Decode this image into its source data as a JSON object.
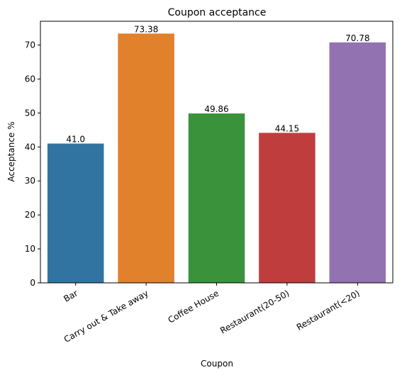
{
  "chart_data": {
    "type": "bar",
    "title": "Coupon acceptance",
    "xlabel": "Coupon",
    "ylabel": "Acceptance %",
    "categories": [
      "Bar",
      "Carry out & Take away",
      "Coffee House",
      "Restaurant(20-50)",
      "Restaurant(<20)"
    ],
    "values": [
      41.0,
      73.38,
      49.86,
      44.15,
      70.78
    ],
    "value_labels": [
      "41.0",
      "73.38",
      "49.86",
      "44.15",
      "70.78"
    ],
    "colors": [
      "#3274a1",
      "#e1812c",
      "#3a923a",
      "#c03d3e",
      "#9372b2"
    ],
    "ylim": [
      0,
      77
    ],
    "yticks": [
      0,
      10,
      20,
      30,
      40,
      50,
      60,
      70
    ],
    "legend": "none",
    "grid": false
  }
}
